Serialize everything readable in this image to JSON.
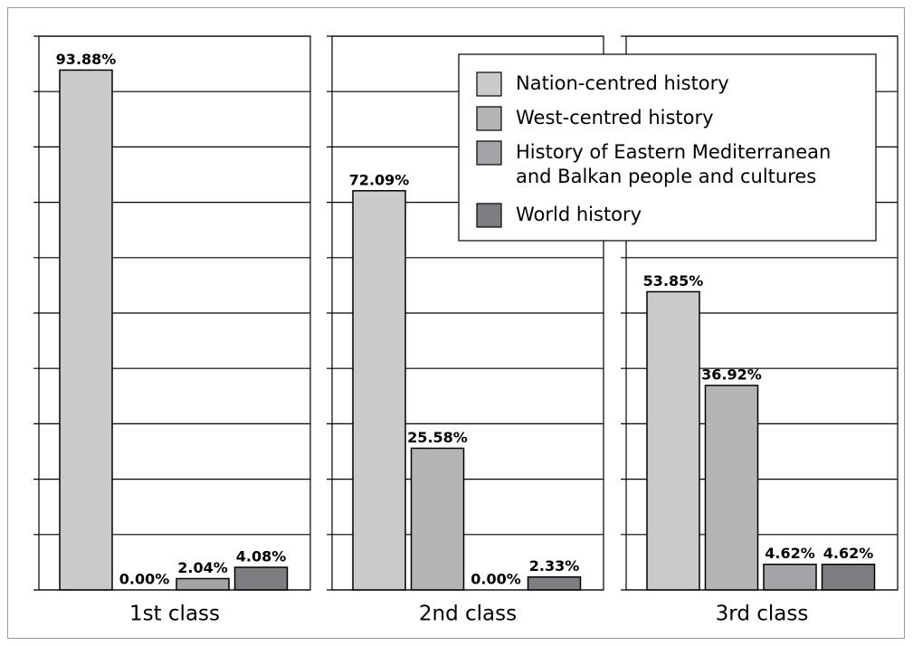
{
  "chart_data": {
    "type": "bar",
    "categories": [
      "1st class",
      "2nd class",
      "3rd class"
    ],
    "series": [
      {
        "name": "Nation-centred history",
        "color": "#c9cacc",
        "values": [
          93.88,
          72.09,
          53.85
        ],
        "value_labels": [
          "93.88%",
          "72.09%",
          "53.85%"
        ]
      },
      {
        "name": "West-centred history",
        "color": "#b3b5b7",
        "values": [
          0,
          25.58,
          36.92
        ],
        "value_labels": [
          "0.00%",
          "25.58%",
          "36.92%"
        ]
      },
      {
        "name": "History of Eastern Mediterranean\nand Balkan people and cultures",
        "color": "#a2a4a7",
        "values": [
          2.04,
          0,
          4.62
        ],
        "value_labels": [
          "2.04%",
          "0.00%",
          "4.62%"
        ]
      },
      {
        "name": "World history",
        "color": "#7c7e81",
        "values": [
          4.08,
          2.33,
          4.62
        ],
        "value_labels": [
          "4.08%",
          "2.33%",
          "4.62%"
        ]
      }
    ],
    "ylim": [
      0,
      100
    ],
    "yticks": [
      0,
      10,
      20,
      30,
      40,
      50,
      60,
      70,
      80,
      90,
      100
    ],
    "grid": true,
    "legend": "upper right"
  }
}
